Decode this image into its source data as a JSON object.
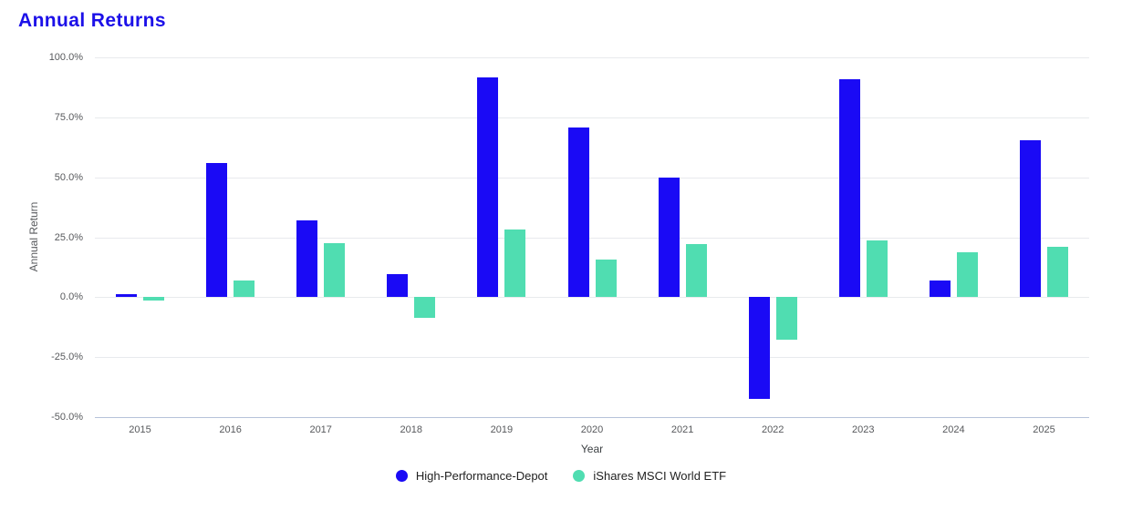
{
  "page": {
    "title": "Annual Returns"
  },
  "chart_data": {
    "type": "bar",
    "title": "Annual Returns",
    "xlabel": "Year",
    "ylabel": "Annual Return",
    "categories": [
      "2015",
      "2016",
      "2017",
      "2018",
      "2019",
      "2020",
      "2021",
      "2022",
      "2023",
      "2024",
      "2025"
    ],
    "series": [
      {
        "name": "High-Performance-Depot",
        "color": "#1a0af5",
        "values": [
          1.4,
          56.0,
          32.2,
          9.5,
          91.8,
          70.9,
          50.0,
          -42.4,
          90.9,
          6.8,
          65.6
        ]
      },
      {
        "name": "iShares MSCI World ETF",
        "color": "#50ddb1",
        "values": [
          -1.3,
          7.0,
          22.5,
          -8.7,
          28.2,
          15.6,
          22.0,
          -17.7,
          23.7,
          18.6,
          21.0
        ]
      }
    ],
    "ylim": [
      -50,
      100
    ],
    "yticks": [
      {
        "label": "100.0%",
        "value": 100
      },
      {
        "label": "75.0%",
        "value": 75
      },
      {
        "label": "50.0%",
        "value": 50
      },
      {
        "label": "25.0%",
        "value": 25
      },
      {
        "label": "0.0%",
        "value": 0
      },
      {
        "label": "-25.0%",
        "value": -25
      },
      {
        "label": "-50.0%",
        "value": -50
      }
    ],
    "grid": true,
    "legend_position": "bottom"
  },
  "colors": {
    "title_text": "#1c10e8",
    "grid_line": "#e8eaed",
    "axis_line": "#b6c2d9",
    "tick_text": "#57595c",
    "axis_title_text": "#3c4043",
    "legend_text": "#222222"
  }
}
